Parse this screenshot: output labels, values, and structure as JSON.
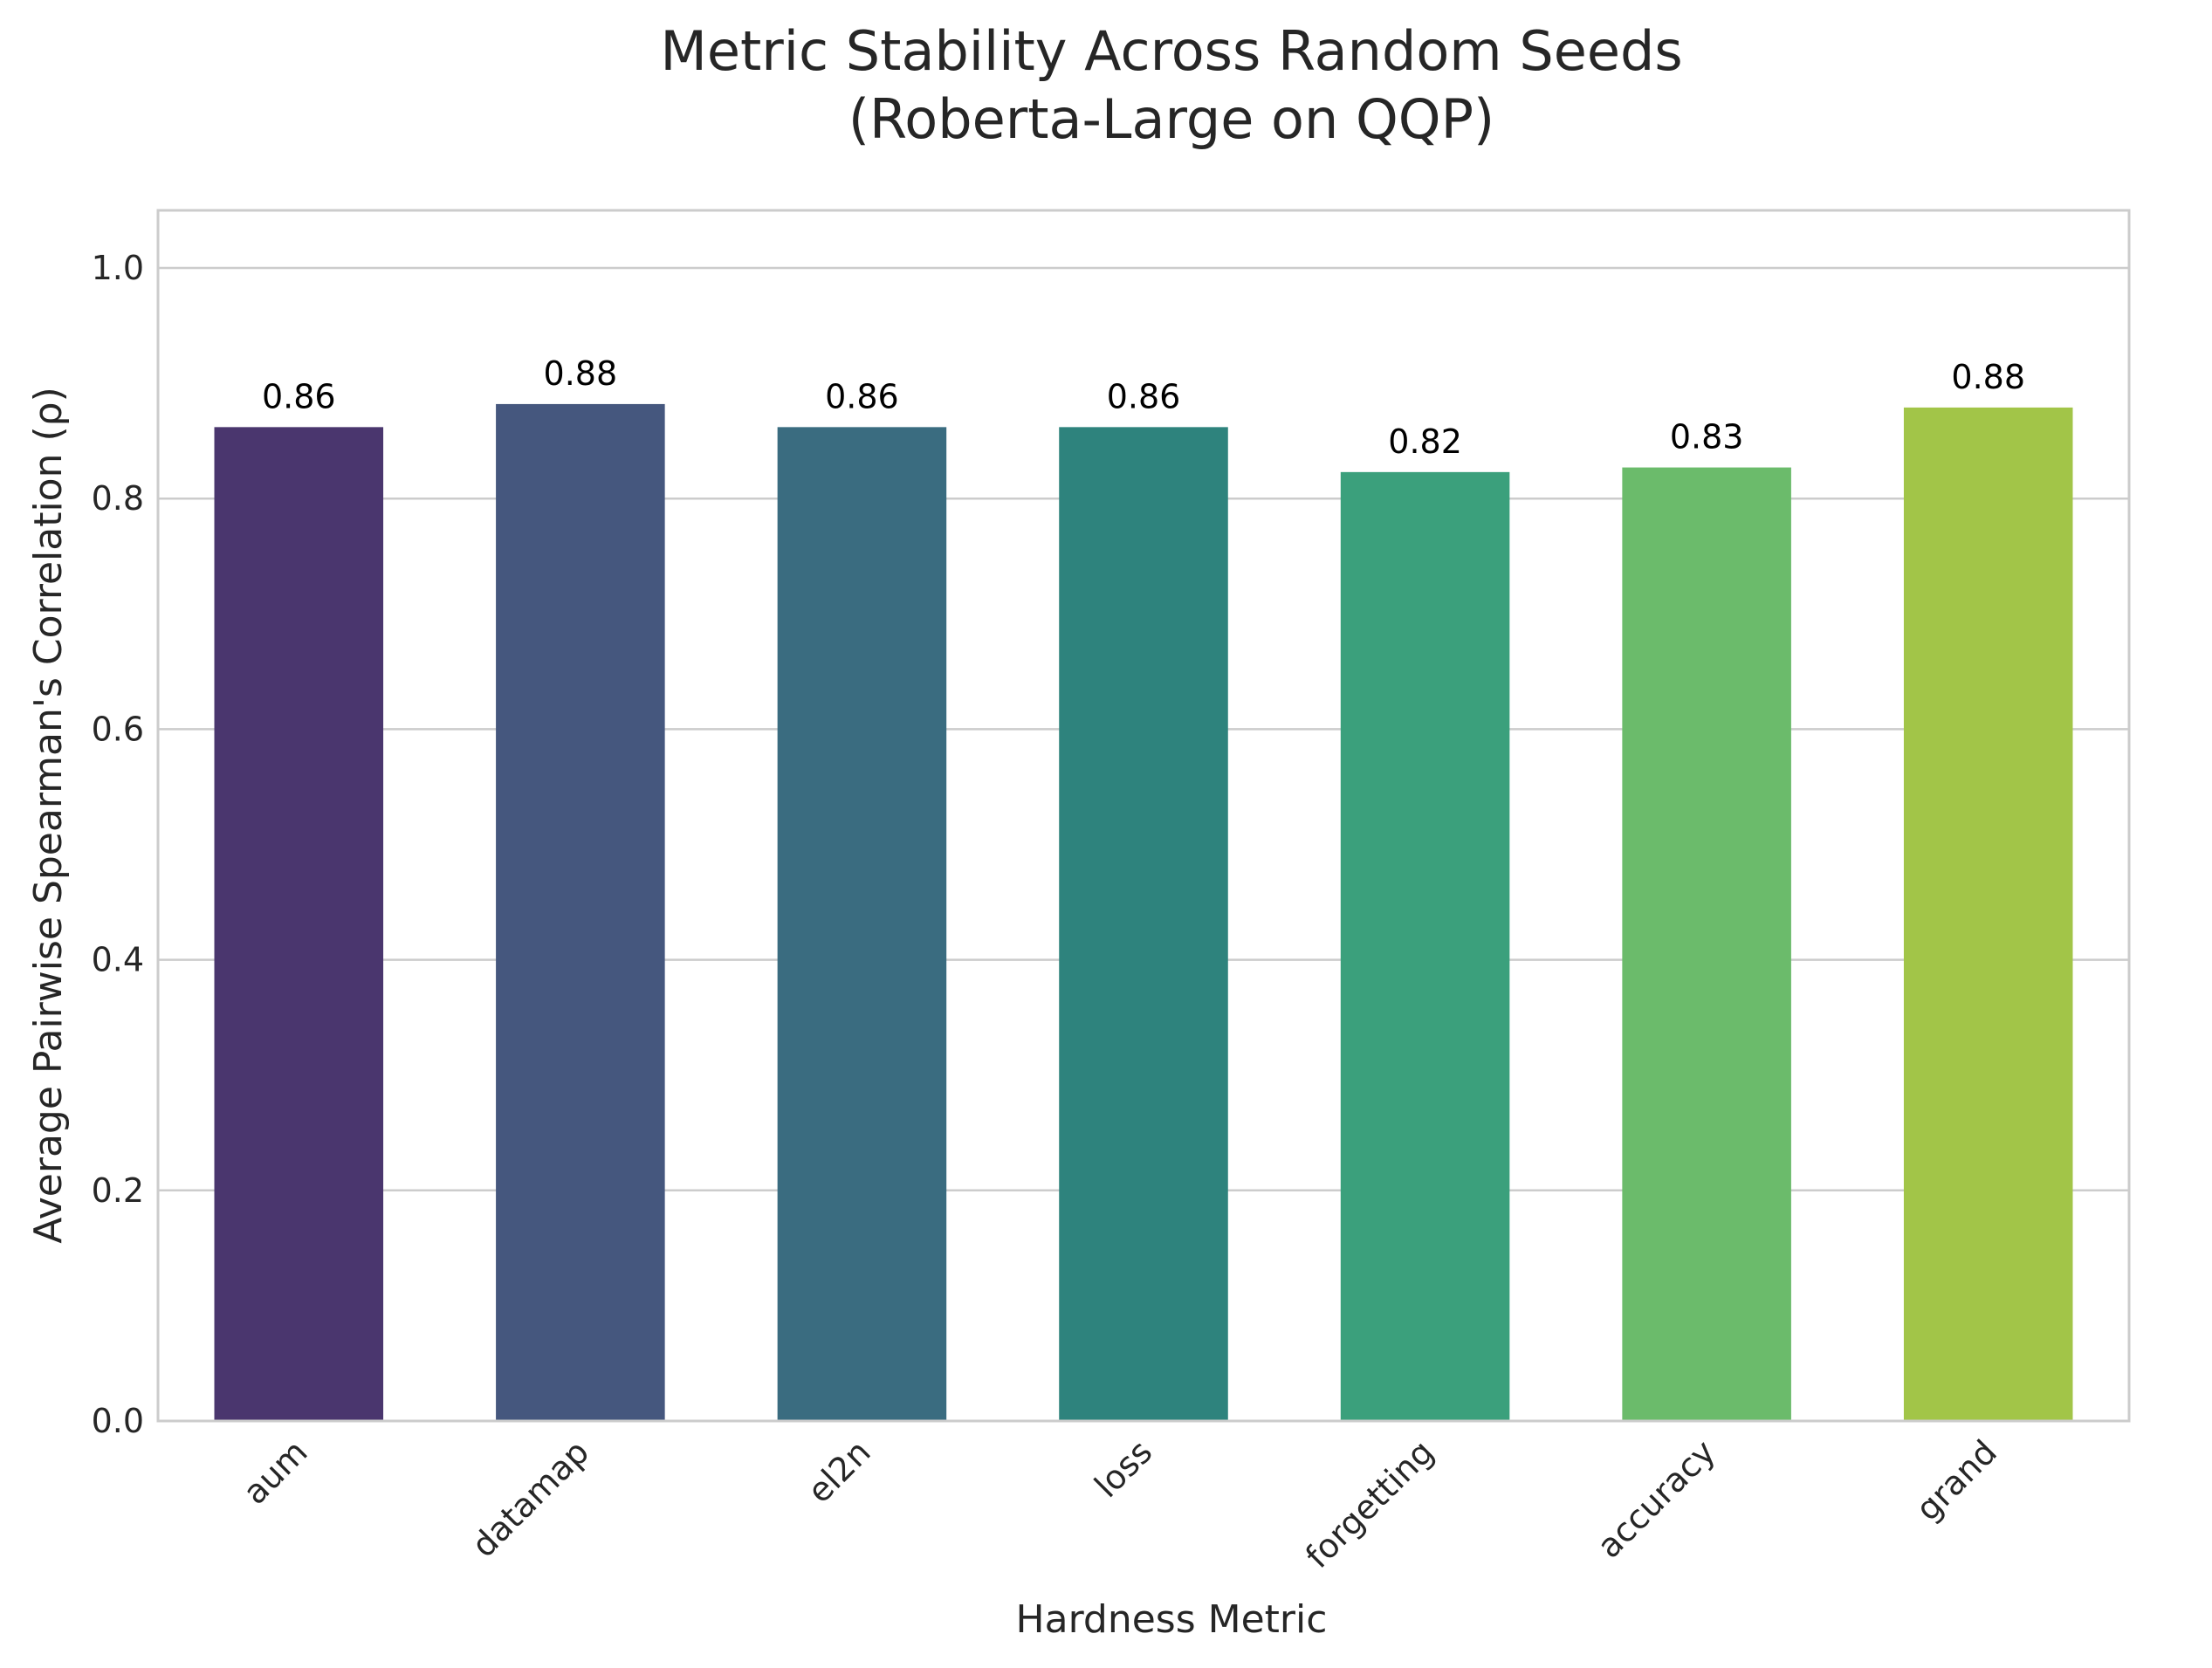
{
  "chart_data": {
    "type": "bar",
    "title_line1": "Metric Stability Across Random Seeds",
    "title_line2": "(Roberta-Large on QQP)",
    "xlabel": "Hardness Metric",
    "ylabel": "Average Pairwise Spearman's Correlation (ρ)",
    "categories": [
      "aum",
      "datamap",
      "el2n",
      "loss",
      "forgetting",
      "accuracy",
      "grand"
    ],
    "values": [
      0.862,
      0.882,
      0.862,
      0.862,
      0.823,
      0.827,
      0.879
    ],
    "value_labels": [
      "0.86",
      "0.88",
      "0.86",
      "0.86",
      "0.82",
      "0.83",
      "0.88"
    ],
    "colors": [
      "#4a366e",
      "#45577e",
      "#3a6c80",
      "#2e837d",
      "#3ba07c",
      "#6bbb6b",
      "#a2c548"
    ],
    "ylim": [
      0,
      1.05
    ],
    "yticks": [
      0.0,
      0.2,
      0.4,
      0.6,
      0.8,
      1.0
    ],
    "ytick_labels": [
      "0.0",
      "0.2",
      "0.4",
      "0.6",
      "0.8",
      "1.0"
    ],
    "grid": "y"
  }
}
